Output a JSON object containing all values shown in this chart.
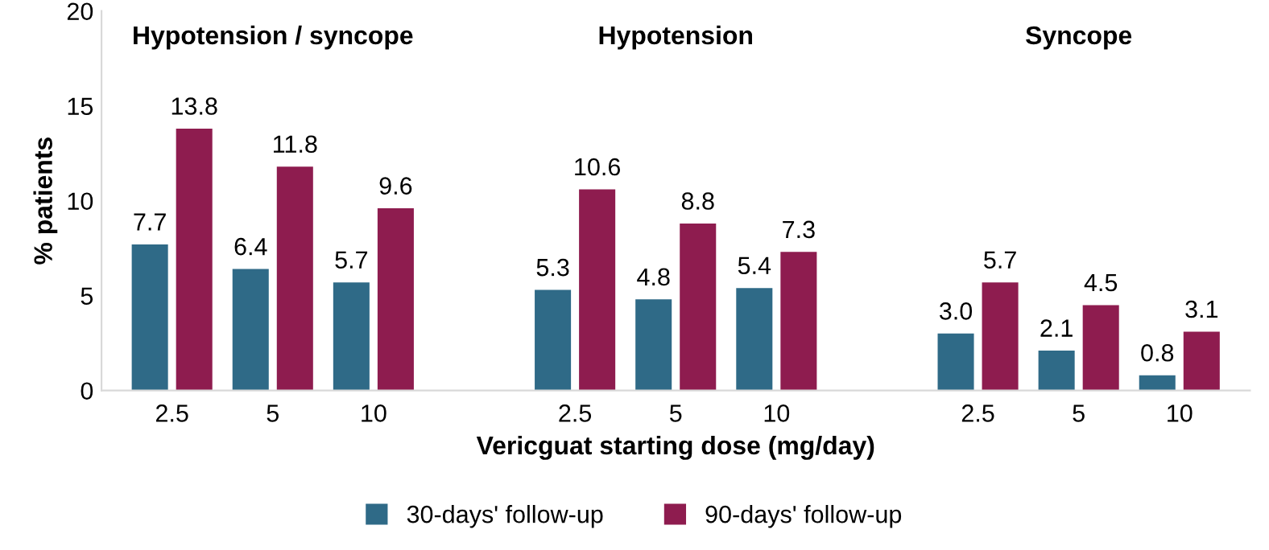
{
  "chart_data": {
    "type": "bar",
    "categories": [
      "2.5",
      "5",
      "10",
      null,
      "2.5",
      "5",
      "10",
      null,
      "2.5",
      "5",
      "10"
    ],
    "series": [
      {
        "name": "30-days' follow-up",
        "color": "#2f6a87",
        "values": [
          7.7,
          6.4,
          5.7,
          null,
          5.3,
          4.8,
          5.4,
          null,
          3.0,
          2.1,
          0.8
        ],
        "value_labels": [
          "7.7",
          "6.4",
          "5.7",
          null,
          "5.3",
          "4.8",
          "5.4",
          null,
          "3.0",
          "2.1",
          "0.8"
        ]
      },
      {
        "name": "90-days' follow-up",
        "color": "#8e1c4f",
        "values": [
          13.8,
          11.8,
          9.6,
          null,
          10.6,
          8.8,
          7.3,
          null,
          5.7,
          4.5,
          3.1
        ],
        "value_labels": [
          "13.8",
          "11.8",
          "9.6",
          null,
          "10.6",
          "8.8",
          "7.3",
          null,
          "5.7",
          "4.5",
          "3.1"
        ]
      }
    ],
    "xlabel": "Vericguat starting dose (mg/day)",
    "ylabel": "% patients",
    "ylim": [
      0,
      20
    ],
    "yticks": [
      0,
      5,
      10,
      15,
      20
    ],
    "annotations": [
      "Hypotension / syncope",
      "Hypotension",
      "Syncope"
    ],
    "grid": false,
    "legend": "bottom"
  }
}
